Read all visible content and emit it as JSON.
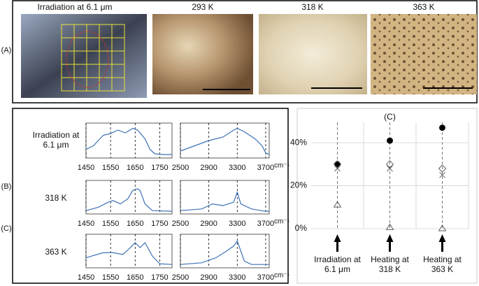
{
  "panel_labels": [
    "(A)",
    "(B)",
    "(C)"
  ],
  "images": [
    {
      "label": "Irradiation at 6.1 μm"
    },
    {
      "label": "293 K"
    },
    {
      "label": "318 K"
    },
    {
      "label": "363 K"
    }
  ],
  "row_labels": [
    "Irradiation at 6.1 μm",
    "318 K",
    "363 K"
  ],
  "chart_data": [
    {
      "type": "line",
      "color": "#3f72b5",
      "xlim": [
        1450,
        1800
      ],
      "ylim": [
        0,
        1
      ],
      "xticks": [
        1450,
        1550,
        1650,
        1750
      ],
      "x": [
        1450,
        1480,
        1520,
        1550,
        1580,
        1610,
        1640,
        1660,
        1690,
        1710,
        1730,
        1760,
        1800
      ],
      "values": [
        0.25,
        0.35,
        0.65,
        0.7,
        0.8,
        0.72,
        0.85,
        0.8,
        0.55,
        0.25,
        0.12,
        0.1,
        0.1
      ]
    },
    {
      "type": "line",
      "color": "#3f72b5",
      "xlim": [
        2500,
        3750
      ],
      "ylim": [
        0,
        1
      ],
      "xticks": [
        2500,
        2900,
        3300,
        3700
      ],
      "xlabel": "cm⁻¹",
      "x": [
        2500,
        2700,
        2900,
        3100,
        3250,
        3300,
        3400,
        3550,
        3650,
        3700,
        3750
      ],
      "values": [
        0.2,
        0.35,
        0.5,
        0.6,
        0.8,
        0.85,
        0.75,
        0.55,
        0.35,
        0.15,
        0.1
      ]
    },
    {
      "type": "line",
      "color": "#3f72b5",
      "xlim": [
        1450,
        1800
      ],
      "ylim": [
        0,
        1
      ],
      "xticks": [
        1450,
        1550,
        1650,
        1750
      ],
      "x": [
        1450,
        1500,
        1540,
        1560,
        1590,
        1620,
        1640,
        1660,
        1670,
        1690,
        1720,
        1800
      ],
      "values": [
        0.1,
        0.2,
        0.35,
        0.4,
        0.3,
        0.45,
        0.7,
        0.75,
        0.7,
        0.3,
        0.1,
        0.08
      ]
    },
    {
      "type": "line",
      "color": "#3f72b5",
      "xlim": [
        2500,
        3750
      ],
      "ylim": [
        0,
        1
      ],
      "xticks": [
        2500,
        2900,
        3300,
        3700
      ],
      "xlabel": "cm⁻¹",
      "x": [
        2500,
        2800,
        2950,
        3100,
        3250,
        3300,
        3350,
        3500,
        3700,
        3750
      ],
      "values": [
        0.1,
        0.15,
        0.3,
        0.25,
        0.35,
        0.65,
        0.3,
        0.15,
        0.08,
        0.08
      ]
    },
    {
      "type": "line",
      "color": "#3f72b5",
      "xlim": [
        1450,
        1800
      ],
      "ylim": [
        0,
        1
      ],
      "xticks": [
        1450,
        1550,
        1650,
        1750
      ],
      "x": [
        1450,
        1520,
        1560,
        1600,
        1630,
        1650,
        1670,
        1690,
        1720,
        1750,
        1800
      ],
      "values": [
        0.3,
        0.45,
        0.45,
        0.4,
        0.6,
        0.75,
        0.6,
        0.75,
        0.35,
        0.12,
        0.1
      ]
    },
    {
      "type": "line",
      "color": "#3f72b5",
      "xlim": [
        2500,
        3750
      ],
      "ylim": [
        0,
        1
      ],
      "xticks": [
        2500,
        2900,
        3300,
        3700
      ],
      "xlabel": "cm⁻¹",
      "x": [
        2500,
        2800,
        3000,
        3150,
        3250,
        3300,
        3350,
        3400,
        3500,
        3750
      ],
      "values": [
        0.1,
        0.15,
        0.3,
        0.5,
        0.65,
        0.8,
        0.5,
        0.2,
        0.1,
        0.1
      ]
    },
    {
      "type": "scatter",
      "title": "(C)",
      "categories": [
        "Irradiation at 6.1 μm",
        "Heating at 318 K",
        "Heating at 363 K"
      ],
      "ylim": [
        0,
        56
      ],
      "yticks": [
        {
          "value": 0,
          "label": "0%"
        },
        {
          "value": 20,
          "label": "20%"
        },
        {
          "value": 40,
          "label": "40%"
        }
      ],
      "grid": true,
      "series": [
        {
          "marker": "circle",
          "color": "#000000",
          "values": [
            30,
            41,
            47
          ]
        },
        {
          "marker": "diamond",
          "color": "#555555",
          "values": [
            30,
            30,
            28
          ]
        },
        {
          "marker": "cross",
          "color": "#555555",
          "values": [
            28,
            28,
            25
          ]
        },
        {
          "marker": "triangle",
          "color": "#555555",
          "values": [
            11,
            0.5,
            0
          ]
        }
      ]
    }
  ]
}
